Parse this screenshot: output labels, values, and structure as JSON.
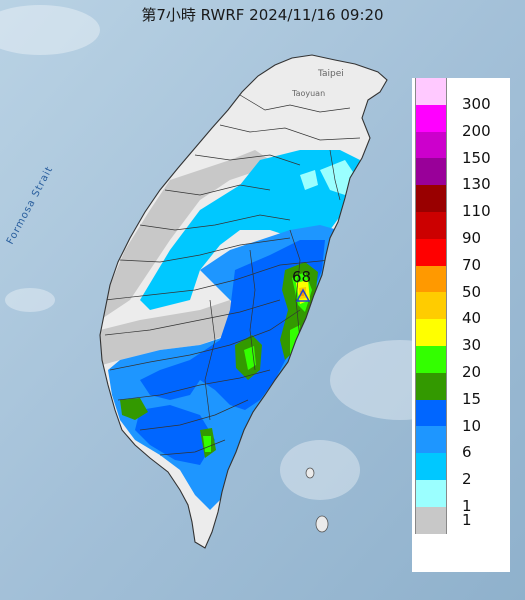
{
  "title": "第7小時  RWRF 2024/11/16 09:20",
  "place_labels": {
    "strait": "Formosa Strait",
    "taipei": "Taipei",
    "taoyuan": "Taoyuan"
  },
  "max_value": {
    "label": "68",
    "marker": "triangle-icon"
  },
  "legend": {
    "items": [
      {
        "label": "300",
        "color": "#ffc9ff"
      },
      {
        "label": "200",
        "color": "#ff00ff"
      },
      {
        "label": "150",
        "color": "#cc00cc"
      },
      {
        "label": "130",
        "color": "#990099"
      },
      {
        "label": "110",
        "color": "#990000"
      },
      {
        "label": "90",
        "color": "#cc0000"
      },
      {
        "label": "70",
        "color": "#ff0000"
      },
      {
        "label": "50",
        "color": "#ff9900"
      },
      {
        "label": "40",
        "color": "#ffcc00"
      },
      {
        "label": "30",
        "color": "#ffff00"
      },
      {
        "label": "20",
        "color": "#33ff00"
      },
      {
        "label": "15",
        "color": "#339900"
      },
      {
        "label": "10",
        "color": "#0066ff"
      },
      {
        "label": "6",
        "color": "#1e96ff"
      },
      {
        "label": "2",
        "color": "#00c8ff"
      },
      {
        "label": "1",
        "color": "#9bffff"
      },
      {
        "label": "",
        "color": "#c8c8c8"
      }
    ],
    "bottom_label": "1"
  },
  "colors": {
    "sea": "#a9c6dc",
    "land": "#ebebeb",
    "no_rain": "#c8c8c8"
  }
}
